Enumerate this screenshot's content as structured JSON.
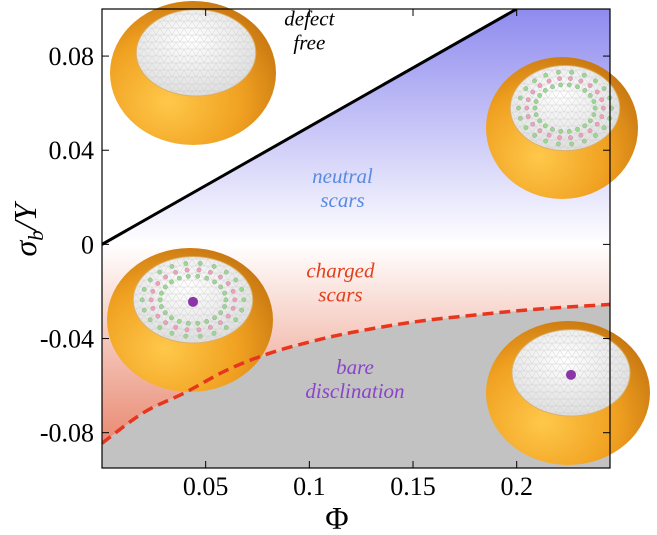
{
  "chart_data": {
    "type": "area",
    "xlabel": "Φ",
    "ylabel": "σ_b / Y",
    "xlim": [
      0,
      0.245
    ],
    "ylim": [
      -0.095,
      0.1
    ],
    "x_ticks": [
      "0.05",
      "0.1",
      "0.15",
      "0.2"
    ],
    "x_tick_values": [
      0.05,
      0.1,
      0.15,
      0.2
    ],
    "y_ticks": [
      "0.08",
      "0.04",
      "0",
      "-0.04",
      "-0.08"
    ],
    "y_tick_values": [
      0.08,
      0.04,
      0,
      -0.04,
      -0.08
    ],
    "grid": false,
    "series": [
      {
        "style": "solid",
        "color": "#000000",
        "x": [
          0,
          0.2
        ],
        "y": [
          0,
          0.1
        ]
      },
      {
        "style": "dashed",
        "color": "#e8361e",
        "x": [
          0,
          0.02,
          0.04,
          0.06,
          0.08,
          0.1,
          0.12,
          0.15,
          0.18,
          0.21,
          0.245
        ],
        "y": [
          -0.0845,
          -0.0715,
          -0.063,
          -0.0535,
          -0.0465,
          -0.0415,
          -0.0375,
          -0.033,
          -0.03,
          -0.0275,
          -0.0255
        ]
      }
    ],
    "regions": [
      {
        "label_lines": [
          "defect",
          "free"
        ],
        "color": "#000000",
        "x": 0.1,
        "y": 0.093
      },
      {
        "label_lines": [
          "neutral",
          "scars"
        ],
        "color": "#5a8ae0",
        "x": 0.116,
        "y": 0.026
      },
      {
        "label_lines": [
          "charged",
          "scars"
        ],
        "color": "#e0401e",
        "x": 0.115,
        "y": -0.014
      },
      {
        "label_lines": [
          "bare",
          "disclination"
        ],
        "color": "#8a44c8",
        "x": 0.122,
        "y": -0.055
      }
    ],
    "colors": {
      "neutral_fill_top": "#8f8bef",
      "neutral_fill_bottom": "#ffffff",
      "charged_fill_top": "#ffffff",
      "charged_fill_bottom": "#e98a72",
      "disclination_fill": "#c2c2c2",
      "shell": "#f0a020",
      "dome": "#f4f4f4",
      "disclination_dot": "#8a35a8"
    },
    "insets": [
      {
        "name": "defect-free-shell",
        "scars": false,
        "center_defect": false
      },
      {
        "name": "neutral-scars-shell",
        "scars": true,
        "center_defect": false
      },
      {
        "name": "charged-scars-shell",
        "scars": true,
        "center_defect": true
      },
      {
        "name": "bare-disclination-shell",
        "scars": false,
        "center_defect": true
      }
    ]
  }
}
